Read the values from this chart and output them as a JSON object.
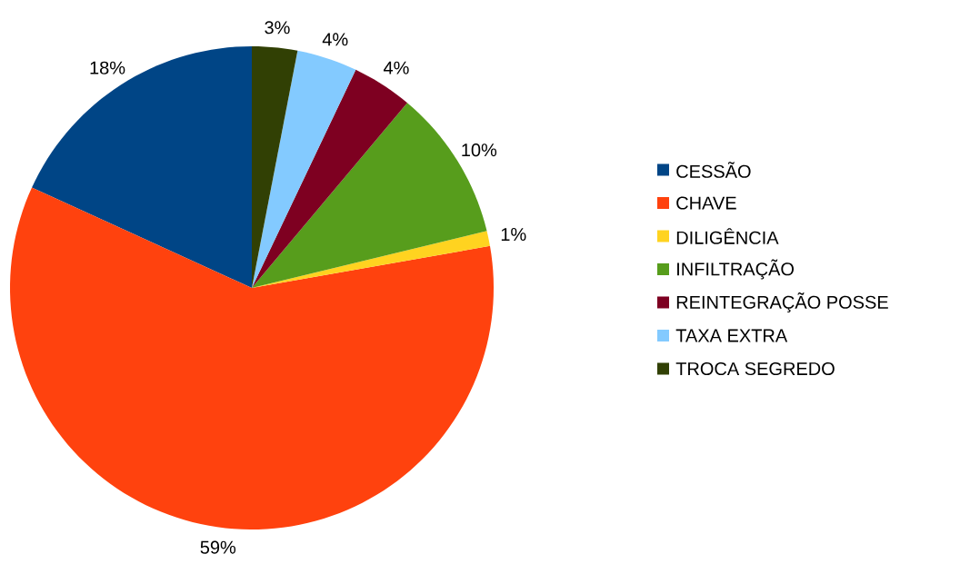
{
  "chart_data": {
    "type": "pie",
    "categories": [
      "CESSÃO",
      "CHAVE",
      "DILIGÊNCIA",
      "INFILTRAÇÃO",
      "REINTEGRAÇÃO POSSE",
      "TAXA EXTRA",
      "TROCA SEGREDO"
    ],
    "values": [
      18,
      59,
      1,
      10,
      4,
      4,
      3
    ],
    "colors": [
      "#004586",
      "#ff420e",
      "#ffd320",
      "#579d1c",
      "#7e0021",
      "#83caff",
      "#314004"
    ],
    "value_labels": [
      "18%",
      "59%",
      "1%",
      "10%",
      "4%",
      "4%",
      "3%"
    ],
    "legend": "right"
  }
}
